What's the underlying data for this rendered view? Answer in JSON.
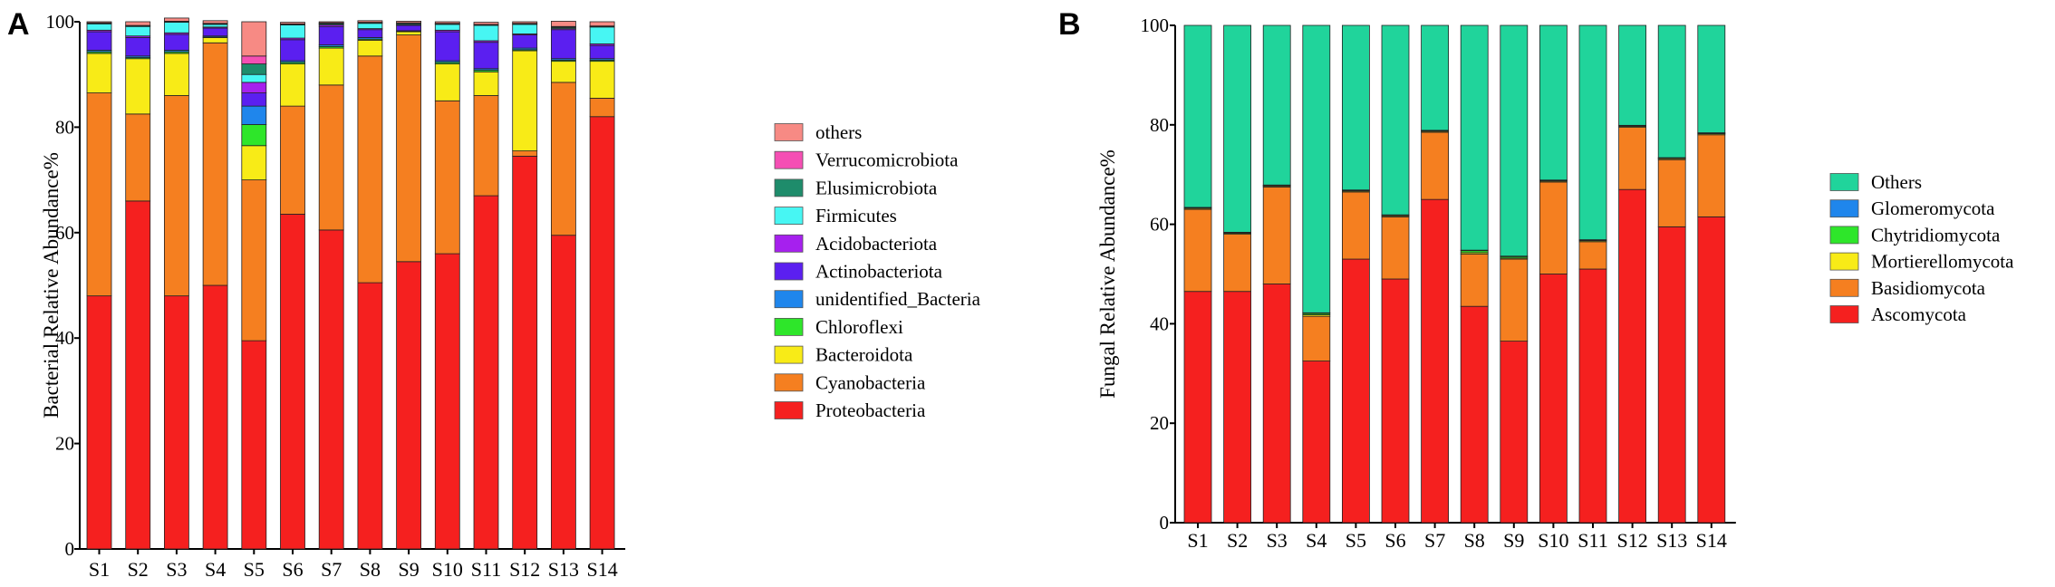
{
  "charts": [
    {
      "panel_label": "A",
      "chart_data": {
        "type": "bar",
        "stacked": true,
        "title": "",
        "xlabel": "",
        "ylabel": "Bacterial Relative Abundance%",
        "ylim": [
          0,
          100
        ],
        "yticks": [
          "0",
          "20",
          "40",
          "60",
          "80",
          "100"
        ],
        "categories": [
          "S1",
          "S2",
          "S3",
          "S4",
          "S5",
          "S6",
          "S7",
          "S8",
          "S9",
          "S10",
          "S11",
          "S12",
          "S13",
          "S14"
        ],
        "legend_position": "right",
        "series": [
          {
            "name": "Proteobacteria",
            "color": "#f5201f",
            "values": [
              48,
              66,
              48,
              50,
              39.5,
              63.5,
              60.5,
              50.5,
              54.5,
              56,
              67,
              74.5,
              59.5,
              82
            ]
          },
          {
            "name": "Cyanobacteria",
            "color": "#f57f20",
            "values": [
              38.5,
              16.5,
              38,
              46,
              30.5,
              20.5,
              27.5,
              43,
              43,
              29,
              19,
              1,
              29,
              3.5
            ]
          },
          {
            "name": "Bacteroidota",
            "color": "#f8eb17",
            "values": [
              7.5,
              10.5,
              8,
              1,
              6.5,
              8,
              7,
              3,
              0.6,
              7,
              4.5,
              19,
              4,
              7
            ]
          },
          {
            "name": "Chloroflexi",
            "color": "#2ee62a",
            "values": [
              0.3,
              0.2,
              0.3,
              0.1,
              4,
              0.3,
              0.3,
              0.2,
              0.1,
              0.3,
              0.3,
              0.2,
              0.2,
              0.2
            ]
          },
          {
            "name": "unidentified_Bacteria",
            "color": "#1f86ec",
            "values": [
              0.3,
              0.3,
              0.3,
              0.2,
              3.5,
              0.3,
              0.3,
              0.3,
              0.1,
              0.3,
              0.3,
              0.3,
              0.3,
              0.3
            ]
          },
          {
            "name": "Actinobacteriota",
            "color": "#5b1ff0",
            "values": [
              3.5,
              3.5,
              3,
              1.5,
              2.5,
              4,
              3.5,
              1.5,
              1,
              5.5,
              5,
              2.5,
              5.5,
              2.5
            ]
          },
          {
            "name": "Acidobacteriota",
            "color": "#a620ee",
            "values": [
              0.3,
              0.3,
              0.3,
              0.2,
              2,
              0.3,
              0.3,
              0.2,
              0.1,
              0.3,
              0.3,
              0.2,
              0.2,
              0.3
            ]
          },
          {
            "name": "Firmicutes",
            "color": "#47f6f3",
            "values": [
              1.2,
              1.8,
              2,
              0.5,
              1.5,
              2.5,
              0.2,
              1,
              0.2,
              1.1,
              2.9,
              1.8,
              0.2,
              3.2
            ]
          },
          {
            "name": "Elusimicrobiota",
            "color": "#1e8c6b",
            "values": [
              0.1,
              0.1,
              0.1,
              0.1,
              2,
              0.1,
              0.1,
              0.1,
              0.1,
              0.1,
              0.1,
              0.1,
              0.1,
              0.1
            ]
          },
          {
            "name": "Verrucomicrobiota",
            "color": "#f54fb4",
            "values": [
              0.1,
              0.1,
              0.1,
              0.1,
              1.5,
              0.1,
              0.1,
              0.1,
              0.1,
              0.1,
              0.1,
              0.1,
              0.1,
              0.1
            ]
          },
          {
            "name": "others",
            "color": "#f78a84",
            "values": [
              0.2,
              0.7,
              0.6,
              0.5,
              6.5,
              0.3,
              0.2,
              0.3,
              0.3,
              0.3,
              0.4,
              0.3,
              1,
              0.8
            ]
          }
        ]
      }
    },
    {
      "panel_label": "B",
      "chart_data": {
        "type": "bar",
        "stacked": true,
        "title": "",
        "xlabel": "",
        "ylabel": "Fungal Relative Abundance%",
        "ylim": [
          0,
          100
        ],
        "yticks": [
          "0",
          "20",
          "40",
          "60",
          "80",
          "100"
        ],
        "categories": [
          "S1",
          "S2",
          "S3",
          "S4",
          "S5",
          "S6",
          "S7",
          "S8",
          "S9",
          "S10",
          "S11",
          "S12",
          "S13",
          "S14"
        ],
        "legend_position": "right",
        "series": [
          {
            "name": "Ascomycota",
            "color": "#f5201f",
            "values": [
              46.5,
              46.5,
              48,
              32.5,
              53,
              49,
              65,
              43.5,
              36.5,
              50,
              51,
              67,
              59.5,
              61.5
            ]
          },
          {
            "name": "Basidiomycota",
            "color": "#f57f20",
            "values": [
              16.5,
              11.5,
              19.5,
              9,
              13.5,
              12.5,
              13.5,
              10.5,
              16.5,
              18.5,
              5.5,
              12.5,
              13.5,
              16.5
            ]
          },
          {
            "name": "Mortierellomycota",
            "color": "#f8eb17",
            "values": [
              0.2,
              0.2,
              0.2,
              0.3,
              0.2,
              0.2,
              0.2,
              0.3,
              0.2,
              0.2,
              0.2,
              0.2,
              0.2,
              0.2
            ]
          },
          {
            "name": "Chytridiomycota",
            "color": "#2ee62a",
            "values": [
              0.1,
              0.1,
              0.1,
              0.3,
              0.1,
              0.1,
              0.1,
              0.4,
              0.3,
              0.1,
              0.1,
              0.1,
              0.1,
              0.1
            ]
          },
          {
            "name": "Glomeromycota",
            "color": "#1f86ec",
            "values": [
              0.1,
              0.1,
              0.1,
              0.1,
              0.1,
              0.1,
              0.1,
              0.1,
              0.1,
              0.1,
              0.1,
              0.1,
              0.1,
              0.1
            ]
          },
          {
            "name": "Others",
            "color": "#20d49b",
            "values": [
              36.6,
              41.6,
              32.1,
              57.8,
              33.1,
              38.1,
              21.1,
              45.2,
              46.4,
              31.1,
              43.1,
              20.1,
              26.6,
              21.6
            ]
          }
        ]
      }
    }
  ]
}
